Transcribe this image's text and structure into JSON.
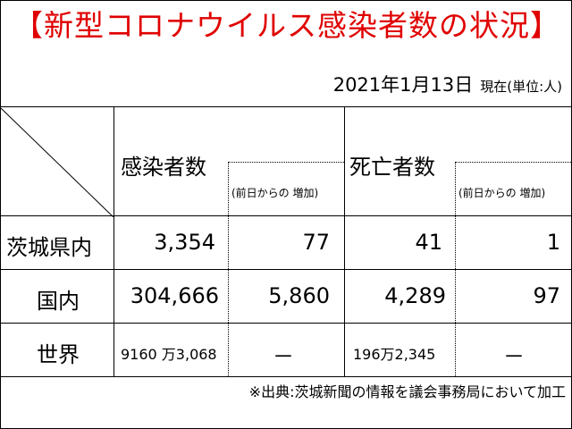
{
  "title": "【新型コロナウイルス感染者数の状況】",
  "date": "2021年1月13日",
  "date_note": "現在(単位:人)",
  "headers": {
    "infected": "感染者数",
    "infected_increase": "(前日からの 増加)",
    "deaths": "死亡者数",
    "deaths_increase": "(前日からの 増加)"
  },
  "rows": [
    {
      "label": "茨城県内",
      "infected": "3,354",
      "infected_inc": "77",
      "deaths": "41",
      "deaths_inc": "1"
    },
    {
      "label": "国内",
      "infected": "304,666",
      "infected_inc": "5,860",
      "deaths": "4,289",
      "deaths_inc": "97"
    },
    {
      "label": "世界",
      "infected": "9160 万3,068",
      "infected_inc": "－",
      "deaths": "196万2,345",
      "deaths_inc": "－"
    }
  ],
  "footer": "※出典:茨城新聞の情報を議会事務局において加工"
}
